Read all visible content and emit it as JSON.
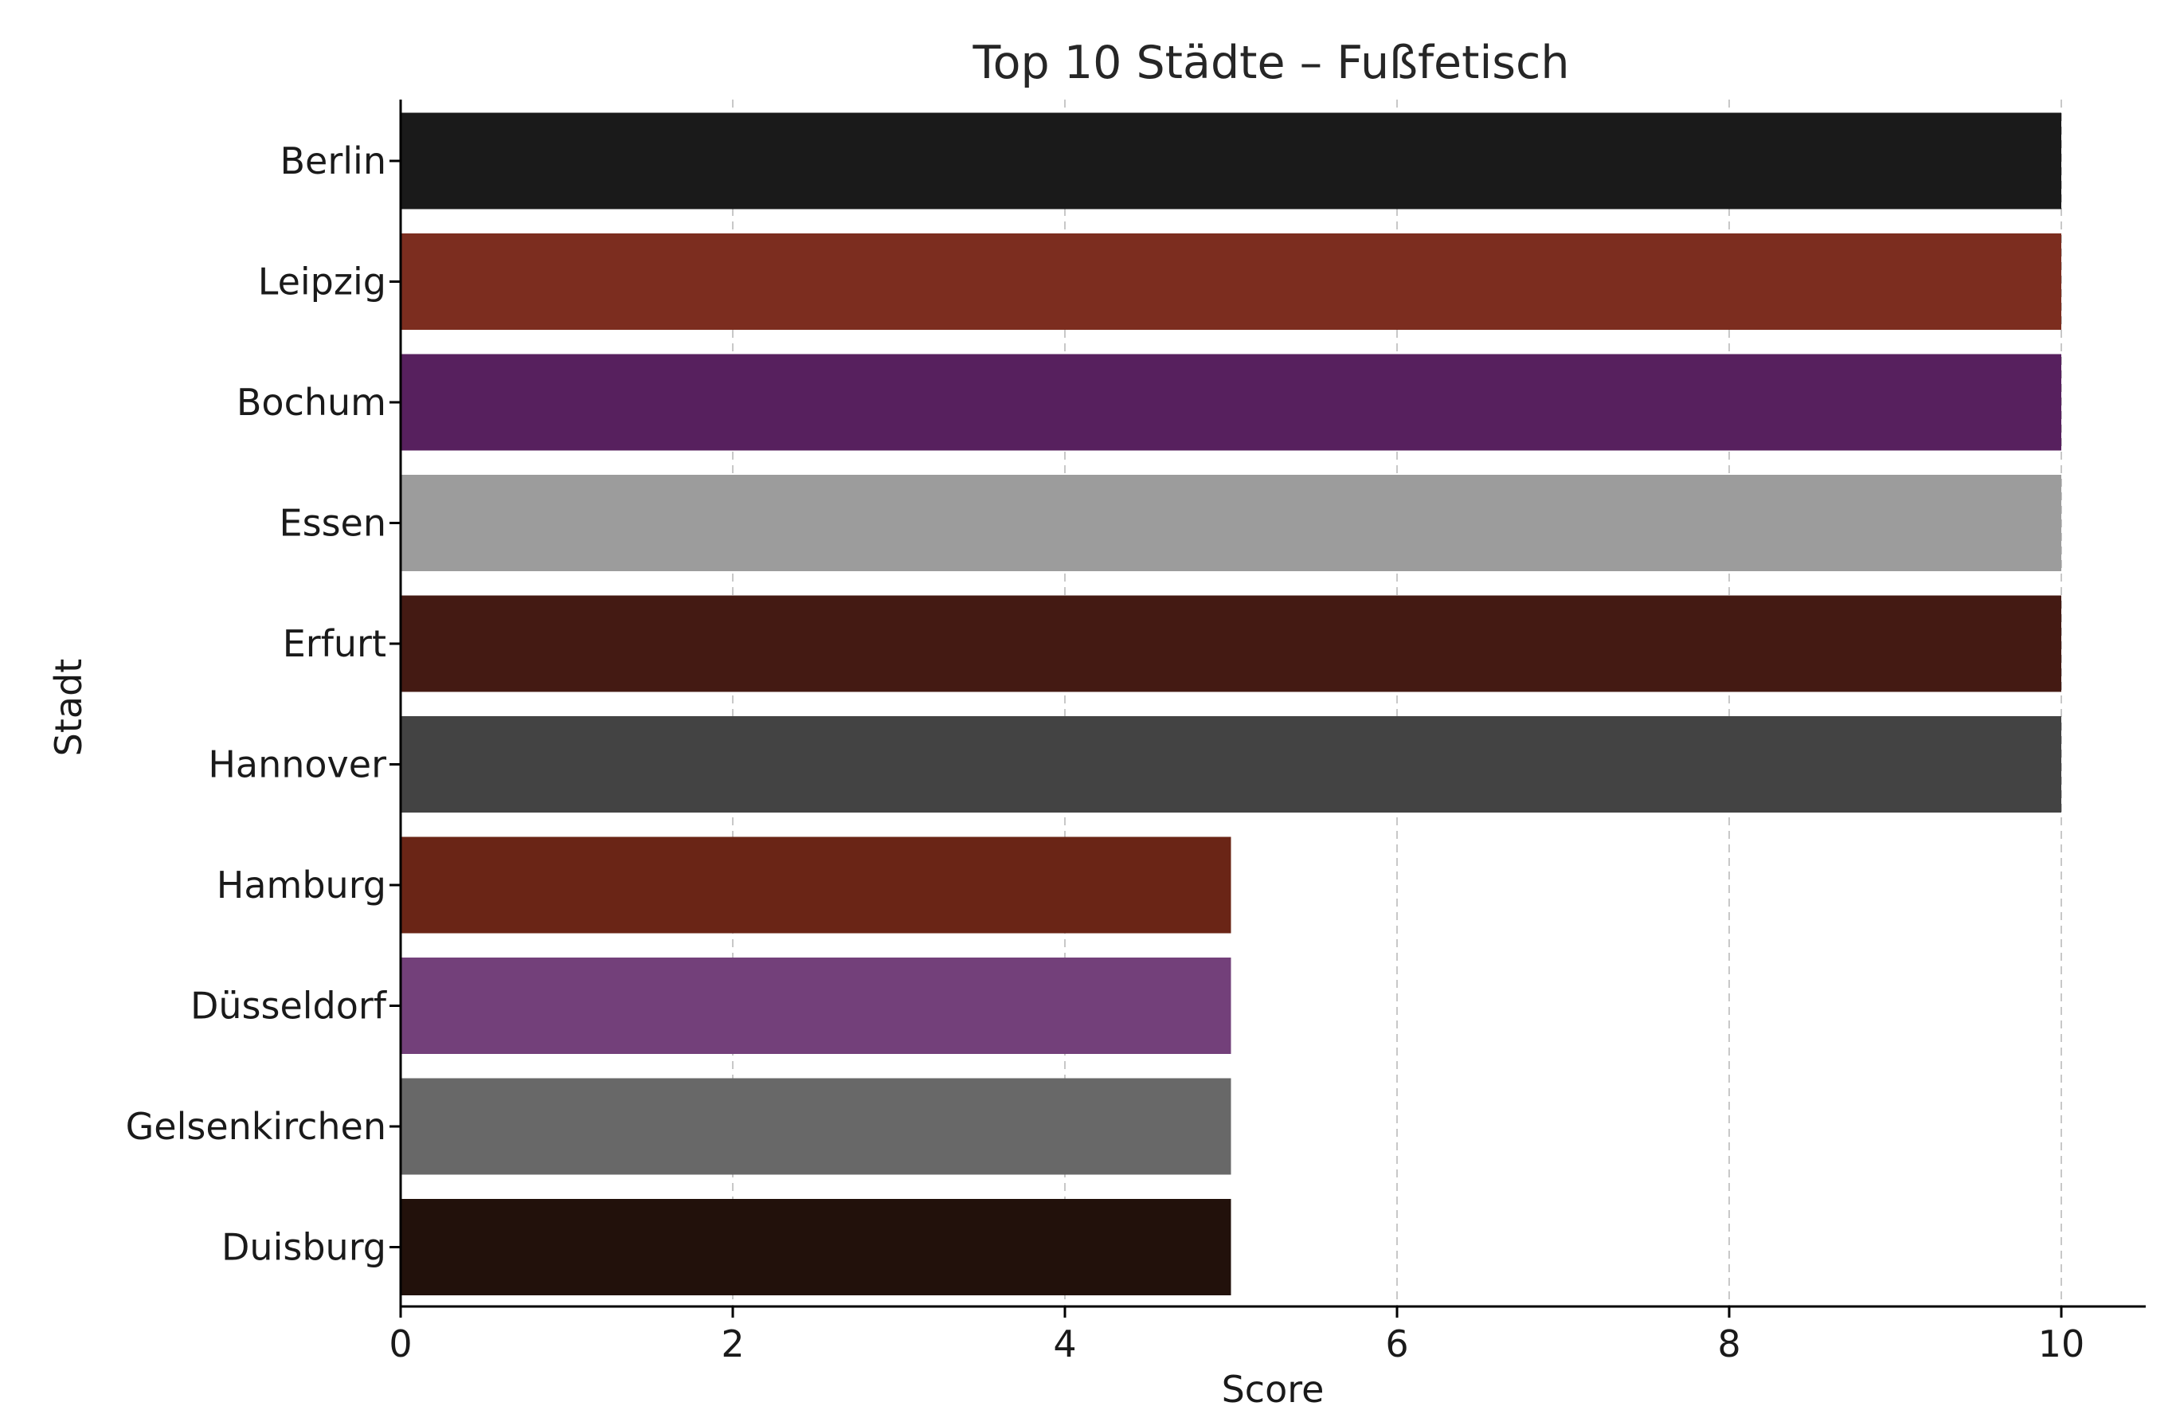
{
  "chart_data": {
    "type": "bar",
    "orientation": "horizontal",
    "title": "Top 10 Städte – Fußfetisch",
    "xlabel": "Score",
    "ylabel": "Stadt",
    "categories": [
      "Berlin",
      "Leipzig",
      "Bochum",
      "Essen",
      "Erfurt",
      "Hannover",
      "Hamburg",
      "Düsseldorf",
      "Gelsenkirchen",
      "Duisburg"
    ],
    "values": [
      10,
      10,
      10,
      10,
      10,
      10,
      5,
      5,
      5,
      5
    ],
    "colors": [
      "#1a1a1a",
      "#7c2d1f",
      "#57205e",
      "#9c9c9c",
      "#441a13",
      "#434343",
      "#6a2516",
      "#73407a",
      "#686868",
      "#22110b"
    ],
    "xlim": [
      0,
      10.5
    ],
    "xticks": [
      0,
      2,
      4,
      6,
      8,
      10
    ],
    "x_grid": true,
    "y_grid": false
  }
}
